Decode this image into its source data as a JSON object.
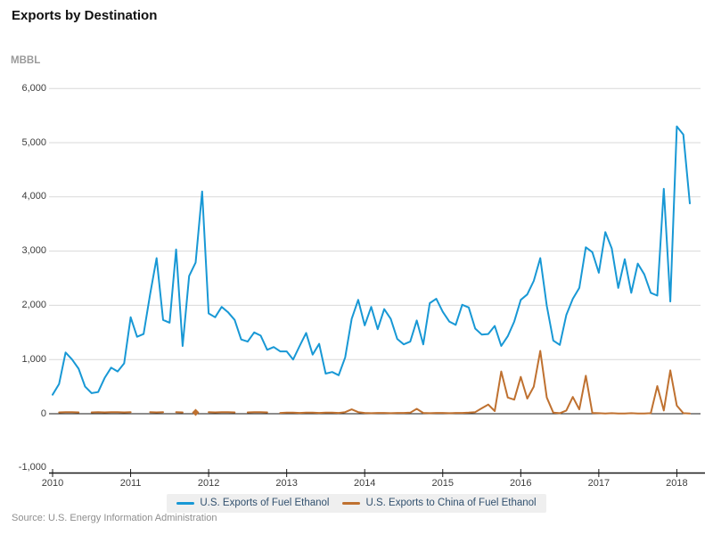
{
  "chart_data": {
    "type": "line",
    "title": "Exports by Destination",
    "ylabel": "MBBL",
    "source": "Source: U.S. Energy Information Administration",
    "x_start": "2010-01",
    "x_freq": "monthly",
    "x_tick_labels": [
      "2010",
      "2011",
      "2012",
      "2013",
      "2014",
      "2015",
      "2016",
      "2017",
      "2018"
    ],
    "ylim": [
      -1000,
      6000
    ],
    "yticks": [
      {
        "value": 6000,
        "label": "6,000"
      },
      {
        "value": 5000,
        "label": "5,000"
      },
      {
        "value": 4000,
        "label": "4,000"
      },
      {
        "value": 3000,
        "label": "3,000"
      },
      {
        "value": 2000,
        "label": "2,000"
      },
      {
        "value": 1000,
        "label": "1,000"
      },
      {
        "value": 0,
        "label": "0"
      },
      {
        "value": -1000,
        "label": "-1,000"
      }
    ],
    "grid": "horizontal",
    "legend_position": "bottom",
    "series": [
      {
        "name": "U.S. Exports of Fuel Ethanol",
        "color": "#1898d5",
        "values": [
          350,
          550,
          1130,
          1000,
          830,
          500,
          380,
          400,
          660,
          850,
          780,
          930,
          1780,
          1420,
          1470,
          2200,
          2870,
          1730,
          1680,
          3030,
          1250,
          2540,
          2790,
          4100,
          1850,
          1780,
          1970,
          1870,
          1730,
          1370,
          1330,
          1500,
          1440,
          1180,
          1230,
          1150,
          1150,
          1000,
          1250,
          1490,
          1090,
          1290,
          740,
          770,
          710,
          1040,
          1750,
          2100,
          1630,
          1970,
          1560,
          1930,
          1750,
          1380,
          1280,
          1330,
          1720,
          1280,
          2040,
          2120,
          1880,
          1700,
          1640,
          2010,
          1960,
          1570,
          1460,
          1470,
          1620,
          1250,
          1430,
          1700,
          2100,
          2200,
          2450,
          2870,
          1990,
          1350,
          1270,
          1820,
          2120,
          2320,
          3070,
          2980,
          2600,
          3350,
          3050,
          2320,
          2850,
          2230,
          2770,
          2570,
          2230,
          2180,
          4150,
          2070,
          5300,
          5150,
          3880
        ]
      },
      {
        "name": "U.S. Exports to China of Fuel Ethanol",
        "color": "#bf7130",
        "values": [
          null,
          25,
          30,
          30,
          25,
          null,
          25,
          30,
          25,
          30,
          30,
          25,
          30,
          null,
          null,
          30,
          25,
          30,
          null,
          30,
          25,
          null,
          25,
          null,
          30,
          25,
          30,
          30,
          25,
          null,
          25,
          30,
          30,
          25,
          null,
          15,
          20,
          20,
          15,
          20,
          20,
          15,
          20,
          20,
          15,
          30,
          80,
          30,
          15,
          10,
          15,
          15,
          10,
          15,
          15,
          20,
          90,
          15,
          10,
          15,
          15,
          10,
          15,
          15,
          20,
          30,
          100,
          170,
          50,
          780,
          300,
          260,
          680,
          280,
          500,
          1160,
          300,
          20,
          10,
          60,
          310,
          80,
          700,
          15,
          10,
          5,
          10,
          5,
          5,
          10,
          5,
          5,
          10,
          510,
          60,
          800,
          150,
          10,
          5
        ]
      }
    ]
  }
}
